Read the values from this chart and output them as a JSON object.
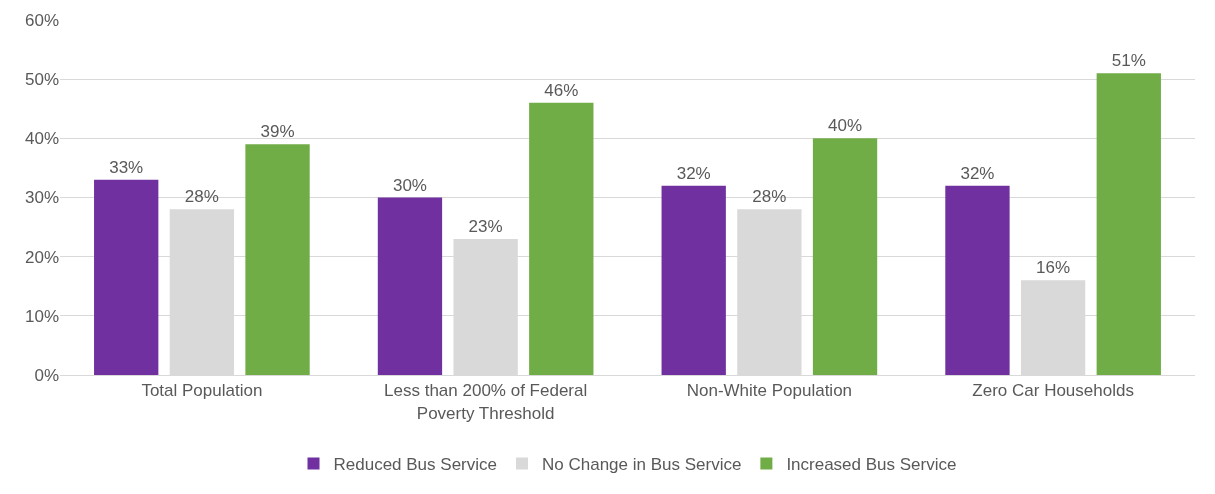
{
  "chart_data": {
    "type": "bar",
    "categories": [
      "Total Population",
      "Less than 200% of Federal\nPoverty Threshold",
      "Non-White Population",
      "Zero Car Households"
    ],
    "series": [
      {
        "name": "Reduced Bus Service",
        "color": "#7030a0",
        "values": [
          33,
          30,
          32,
          32
        ],
        "value_labels": [
          "33%",
          "30%",
          "32%",
          "32%"
        ]
      },
      {
        "name": "No Change in Bus Service",
        "color": "#d9d9d9",
        "values": [
          28,
          23,
          28,
          16
        ],
        "value_labels": [
          "28%",
          "23%",
          "28%",
          "16%"
        ]
      },
      {
        "name": "Increased Bus Service",
        "color": "#70ad47",
        "values": [
          39,
          46,
          40,
          51
        ],
        "value_labels": [
          "39%",
          "46%",
          "40%",
          "51%"
        ]
      }
    ],
    "ylim": [
      0,
      60
    ],
    "yticks": [
      {
        "value": 0,
        "label": "0%"
      },
      {
        "value": 10,
        "label": "10%"
      },
      {
        "value": 20,
        "label": "20%"
      },
      {
        "value": 30,
        "label": "30%"
      },
      {
        "value": 40,
        "label": "40%"
      },
      {
        "value": 50,
        "label": "50%"
      },
      {
        "value": 60,
        "label": "60%"
      }
    ],
    "grid": "y",
    "legend": "bottom"
  }
}
